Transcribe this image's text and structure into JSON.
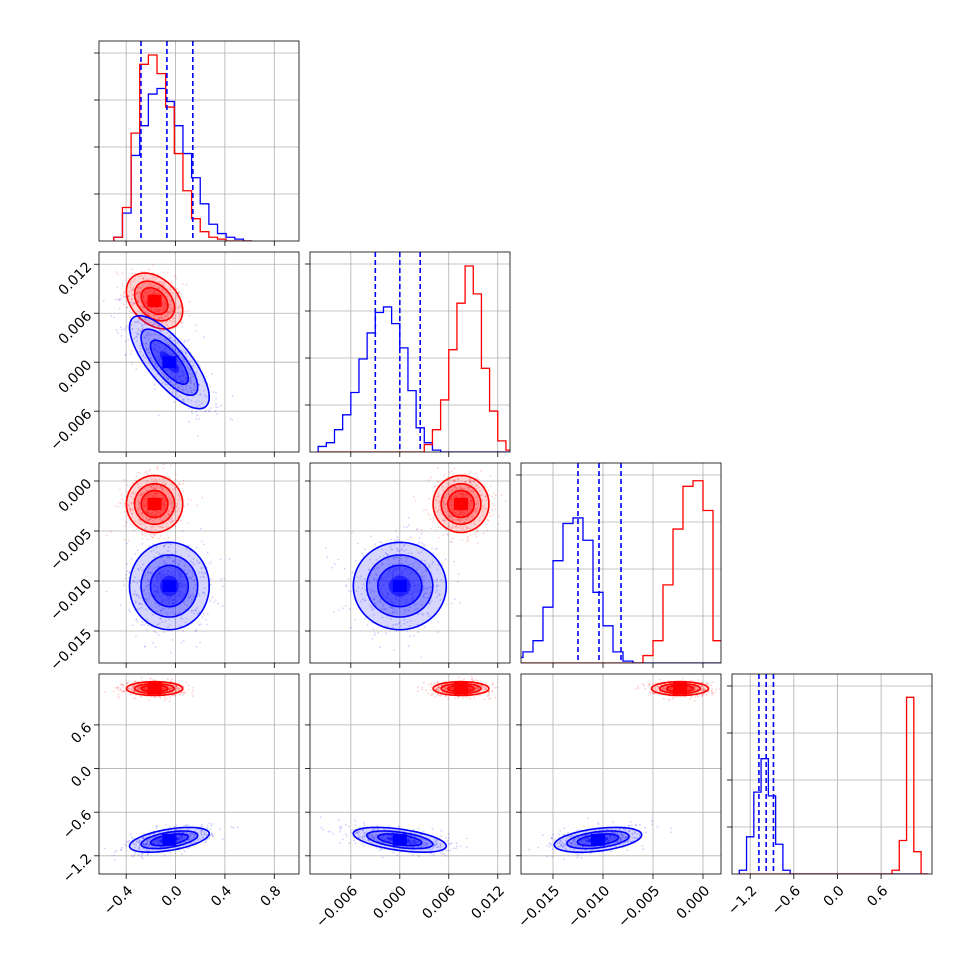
{
  "chart_data": {
    "type": "corner",
    "colors": {
      "series_a": "#ff0000",
      "series_b": "#0000ff"
    },
    "series": [
      {
        "name": "series_a",
        "color": "#ff0000",
        "params": [
          {
            "mean": -0.17,
            "sd": 0.12
          },
          {
            "mean": 0.0075,
            "sd": 0.0018
          },
          {
            "mean": -0.0023,
            "sd": 0.0015
          },
          {
            "mean": 1.1,
            "sd": 0.05
          }
        ],
        "correlation": [
          [
            1.0,
            -0.35,
            0.0,
            0.0
          ],
          [
            -0.35,
            1.0,
            0.0,
            0.0
          ],
          [
            0.0,
            0.0,
            1.0,
            0.0
          ],
          [
            0.0,
            0.0,
            0.0,
            1.0
          ]
        ]
      },
      {
        "name": "series_b",
        "color": "#0000ff",
        "params": [
          {
            "mean": -0.05,
            "sd": 0.17
          },
          {
            "mean": 0.0,
            "sd": 0.003
          },
          {
            "mean": -0.0105,
            "sd": 0.0023
          },
          {
            "mean": -0.98,
            "sd": 0.09
          }
        ],
        "correlation": [
          [
            1.0,
            -0.75,
            0.0,
            0.5
          ],
          [
            -0.75,
            1.0,
            0.0,
            -0.5
          ],
          [
            0.0,
            0.0,
            1.0,
            0.4
          ],
          [
            0.5,
            -0.5,
            0.4,
            1.0
          ]
        ]
      }
    ],
    "quantiles_series": "series_b",
    "quantile_lines": [
      [
        -0.28,
        -0.07,
        0.14
      ],
      [
        -0.003,
        0.0,
        0.0025
      ],
      [
        -0.0125,
        -0.0104,
        -0.0082
      ],
      [
        -1.08,
        -0.98,
        -0.88
      ]
    ],
    "histograms": [
      {
        "bins": [
          -0.5,
          -0.43,
          -0.36,
          -0.29,
          -0.22,
          -0.15,
          -0.08,
          -0.01,
          0.06,
          0.13,
          0.2,
          0.27,
          0.34,
          0.41,
          0.48,
          0.55,
          0.62
        ],
        "series_a": [
          0.02,
          0.18,
          0.58,
          0.95,
          1.0,
          0.9,
          0.72,
          0.47,
          0.27,
          0.12,
          0.05,
          0.02,
          0.01,
          0.0,
          0.0,
          0.0
        ],
        "series_b": [
          0.02,
          0.15,
          0.46,
          0.62,
          0.79,
          0.82,
          0.75,
          0.62,
          0.47,
          0.34,
          0.2,
          0.09,
          0.04,
          0.02,
          0.01,
          0.0
        ]
      },
      {
        "bins": [
          -0.01,
          -0.009,
          -0.008,
          -0.007,
          -0.006,
          -0.005,
          -0.004,
          -0.003,
          -0.002,
          -0.001,
          0.0,
          0.001,
          0.002,
          0.003,
          0.004,
          0.005,
          0.006,
          0.007,
          0.008,
          0.009,
          0.01,
          0.011,
          0.012,
          0.013,
          0.014
        ],
        "series_a": [
          0,
          0,
          0,
          0,
          0,
          0,
          0,
          0,
          0,
          0,
          0,
          0,
          0,
          0.04,
          0.12,
          0.28,
          0.55,
          0.8,
          1.0,
          0.85,
          0.45,
          0.22,
          0.06,
          0.01
        ],
        "series_b": [
          0.03,
          0.05,
          0.12,
          0.2,
          0.32,
          0.5,
          0.64,
          0.75,
          0.78,
          0.69,
          0.56,
          0.33,
          0.13,
          0.05,
          0.01,
          0,
          0,
          0,
          0,
          0,
          0,
          0,
          0,
          0
        ]
      },
      {
        "bins": [
          -0.019,
          -0.018,
          -0.017,
          -0.016,
          -0.015,
          -0.014,
          -0.013,
          -0.012,
          -0.011,
          -0.01,
          -0.009,
          -0.008,
          -0.007,
          -0.006,
          -0.005,
          -0.004,
          -0.003,
          -0.002,
          -0.001,
          0.0,
          0.001,
          0.002
        ],
        "series_a": [
          0,
          0,
          0,
          0,
          0,
          0,
          0,
          0,
          0,
          0,
          0,
          0,
          0,
          0.04,
          0.12,
          0.42,
          0.72,
          0.95,
          0.98,
          0.82,
          0.12
        ],
        "series_b": [
          0.03,
          0.06,
          0.12,
          0.3,
          0.55,
          0.75,
          0.78,
          0.66,
          0.38,
          0.2,
          0.06,
          0.01,
          0,
          0,
          0,
          0,
          0,
          0,
          0,
          0,
          0
        ]
      },
      {
        "bins": [
          -1.35,
          -1.25,
          -1.15,
          -1.05,
          -0.95,
          -0.85,
          -0.75,
          -0.65,
          -0.55,
          -0.45,
          -0.35,
          -0.25,
          -0.15,
          -0.05,
          0.05,
          0.15,
          0.25,
          0.35,
          0.45,
          0.55,
          0.65,
          0.75,
          0.85,
          0.95,
          1.05,
          1.15,
          1.25
        ],
        "series_a": [
          0,
          0,
          0,
          0,
          0,
          0,
          0,
          0,
          0,
          0,
          0,
          0,
          0,
          0,
          0,
          0,
          0,
          0,
          0,
          0,
          0,
          0.02,
          0.18,
          0.95,
          0.12,
          0.0
        ],
        "series_b": [
          0.02,
          0.2,
          0.44,
          0.62,
          0.42,
          0.16,
          0.02,
          0,
          0,
          0,
          0,
          0,
          0,
          0,
          0,
          0,
          0,
          0,
          0,
          0,
          0,
          0,
          0,
          0,
          0,
          0
        ]
      }
    ],
    "axes": [
      {
        "range": [
          -0.62,
          1.0
        ],
        "ticks": [
          -0.4,
          0.0,
          0.4,
          0.8
        ],
        "tick_labels": [
          "−0.4",
          "0.0",
          "0.4",
          "0.8"
        ]
      },
      {
        "range": [
          -0.011,
          0.0135
        ],
        "ticks": [
          -0.006,
          0.0,
          0.006,
          0.012
        ],
        "tick_labels": [
          "−0.006",
          "0.000",
          "0.006",
          "0.012"
        ]
      },
      {
        "range": [
          -0.0182,
          0.0018
        ],
        "ticks": [
          -0.015,
          -0.01,
          -0.005,
          0.0
        ],
        "tick_labels": [
          "−0.015",
          "−0.010",
          "−0.005",
          "0.000"
        ]
      },
      {
        "range": [
          -1.45,
          1.3
        ],
        "ticks": [
          -1.2,
          -0.6,
          0.0,
          0.6
        ],
        "tick_labels": [
          "−1.2",
          "−0.6",
          "0.0",
          "0.6"
        ]
      }
    ],
    "contour_levels": [
      0.393,
      0.865,
      0.989
    ],
    "title": "",
    "grid": true,
    "legend": "none"
  }
}
